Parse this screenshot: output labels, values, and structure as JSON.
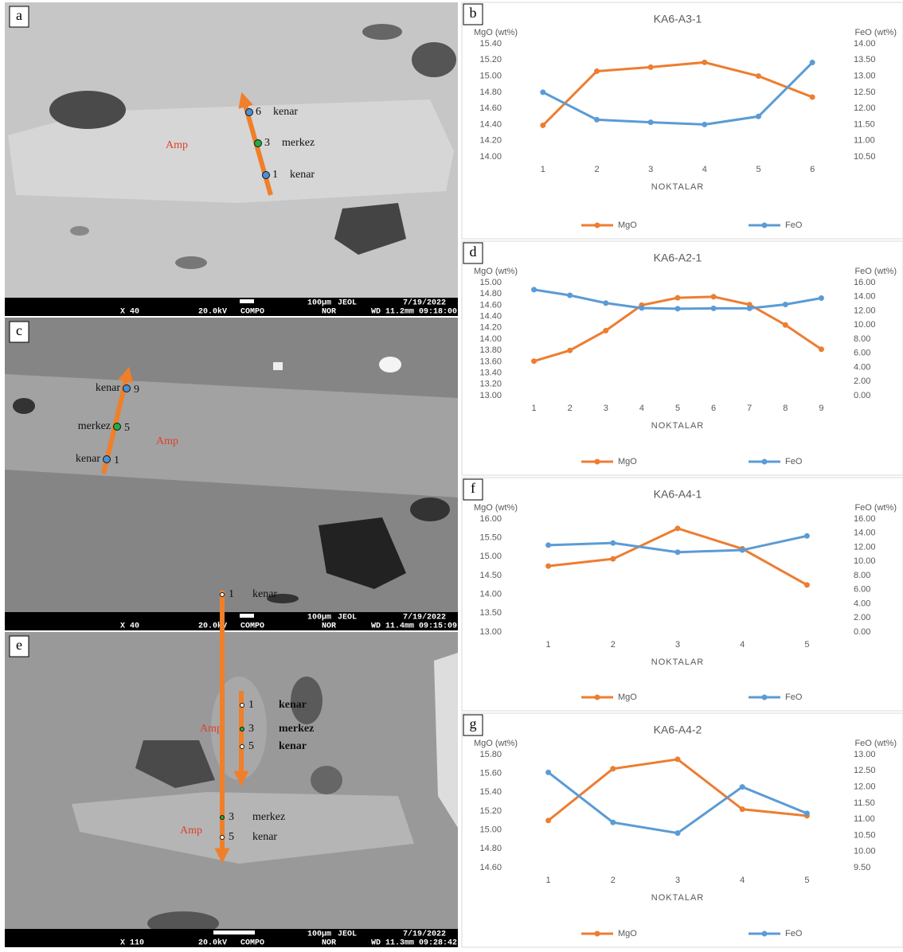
{
  "images": [
    {
      "label": "a",
      "minerals": [
        "Amp"
      ],
      "traverses": [
        [
          {
            "number": "6",
            "name": "kenar"
          },
          {
            "number": "3",
            "name": "merkez"
          },
          {
            "number": "1",
            "name": "kenar"
          }
        ]
      ],
      "info": {
        "magnification": "X 40",
        "voltage": "20.0kV",
        "mode": "COMPO",
        "nor": "NOR",
        "wd": "WD 11.2mm",
        "time": "09:18:00",
        "scale": "100µm",
        "brand": "JEOL",
        "date": "7/19/2022"
      }
    },
    {
      "label": "c",
      "minerals": [
        "Amp"
      ],
      "traverses": [
        [
          {
            "number": "9",
            "name": "kenar"
          },
          {
            "number": "5",
            "name": "merkez"
          },
          {
            "number": "1",
            "name": "kenar"
          }
        ]
      ],
      "info": {
        "magnification": "X 40",
        "voltage": "20.0kV",
        "mode": "COMPO",
        "nor": "NOR",
        "wd": "WD 11.4mm",
        "time": "09:15:09",
        "scale": "100µm",
        "brand": "JEOL",
        "date": "7/19/2022"
      }
    },
    {
      "label": "e",
      "minerals": [
        "Amp",
        "Amp"
      ],
      "traverses": [
        [
          {
            "number": "1",
            "name": "kenar"
          },
          {
            "number": "3",
            "name": "merkez"
          },
          {
            "number": "5",
            "name": "kenar"
          }
        ],
        [
          {
            "number": "1",
            "name": "kenar"
          },
          {
            "number": "3",
            "name": "merkez"
          },
          {
            "number": "5",
            "name": "kenar"
          }
        ]
      ],
      "info": {
        "magnification": "X 110",
        "voltage": "20.0kV",
        "mode": "COMPO",
        "nor": "NOR",
        "wd": "WD 11.3mm",
        "time": "09:28:42",
        "scale": "100µm",
        "brand": "JEOL",
        "date": "7/19/2022"
      }
    }
  ],
  "chart_data": [
    {
      "type": "line",
      "label": "b",
      "title": "KA6-A3-1",
      "y_label": "MgO (wt%)",
      "y2_label": "FeO (wt%)",
      "x_label": "NOKTALAR",
      "legend": "bottom",
      "grid": false,
      "categories": [
        "1",
        "2",
        "3",
        "4",
        "5",
        "6"
      ],
      "highlight_index": 2,
      "highlight_color": "#00a050",
      "series": [
        {
          "name": "MgO",
          "color": "#ed7d31",
          "values": [
            14.39,
            15.06,
            15.11,
            15.17,
            15.0,
            14.74
          ]
        },
        {
          "name": "FeO",
          "color": "#5b9bd5",
          "axis": "y2",
          "values": [
            12.5,
            11.65,
            11.57,
            11.5,
            11.75,
            13.42
          ]
        }
      ],
      "ylim": [
        14.0,
        15.4
      ],
      "yticks": [
        {
          "value": 14.0,
          "label": "14.00"
        },
        {
          "value": 14.2,
          "label": "14.20"
        },
        {
          "value": 14.4,
          "label": "14.40"
        },
        {
          "value": 14.6,
          "label": "14.60"
        },
        {
          "value": 14.8,
          "label": "14.80"
        },
        {
          "value": 15.0,
          "label": "15.00"
        },
        {
          "value": 15.2,
          "label": "15.20"
        },
        {
          "value": 15.4,
          "label": "15.40"
        }
      ],
      "y2lim": [
        10.5,
        14.0
      ],
      "y2ticks": [
        {
          "value": 10.5,
          "label": "10.50"
        },
        {
          "value": 11.0,
          "label": "11.00"
        },
        {
          "value": 11.5,
          "label": "11.50"
        },
        {
          "value": 12.0,
          "label": "12.00"
        },
        {
          "value": 12.5,
          "label": "12.50"
        },
        {
          "value": 13.0,
          "label": "13.00"
        },
        {
          "value": 13.5,
          "label": "13.50"
        },
        {
          "value": 14.0,
          "label": "14.00"
        }
      ]
    },
    {
      "type": "line",
      "label": "d",
      "title": "KA6-A2-1",
      "y_label": "MgO (wt%)",
      "y2_label": "FeO (wt%)",
      "x_label": "NOKTALAR",
      "legend": "bottom",
      "grid": false,
      "categories": [
        "1",
        "2",
        "3",
        "4",
        "5",
        "6",
        "7",
        "8",
        "9"
      ],
      "highlight_index": 4,
      "highlight_color": "#00a050",
      "series": [
        {
          "name": "MgO",
          "color": "#ed7d31",
          "values": [
            13.61,
            13.8,
            14.15,
            14.6,
            14.73,
            14.75,
            14.61,
            14.25,
            13.82
          ]
        },
        {
          "name": "FeO",
          "color": "#5b9bd5",
          "axis": "y2",
          "values": [
            15.0,
            14.2,
            13.1,
            12.4,
            12.3,
            12.35,
            12.35,
            12.9,
            13.8
          ]
        }
      ],
      "ylim": [
        13.0,
        15.0
      ],
      "yticks": [
        {
          "value": 13.0,
          "label": "13.00"
        },
        {
          "value": 13.2,
          "label": "13.20"
        },
        {
          "value": 13.4,
          "label": "13.40"
        },
        {
          "value": 13.6,
          "label": "13.60"
        },
        {
          "value": 13.8,
          "label": "13.80"
        },
        {
          "value": 14.0,
          "label": "14.00"
        },
        {
          "value": 14.2,
          "label": "14.20"
        },
        {
          "value": 14.4,
          "label": "14.40"
        },
        {
          "value": 14.6,
          "label": "14.60"
        },
        {
          "value": 14.8,
          "label": "14.80"
        },
        {
          "value": 15.0,
          "label": "15.00"
        }
      ],
      "y2lim": [
        0,
        16
      ],
      "y2ticks": [
        {
          "value": 0,
          "label": "0.00"
        },
        {
          "value": 2,
          "label": "2.00"
        },
        {
          "value": 4,
          "label": "4.00"
        },
        {
          "value": 6,
          "label": "6.00"
        },
        {
          "value": 8,
          "label": "8.00"
        },
        {
          "value": 10,
          "label": "10.00"
        },
        {
          "value": 12,
          "label": "12.00"
        },
        {
          "value": 14,
          "label": "14.00"
        },
        {
          "value": 16,
          "label": "16.00"
        }
      ]
    },
    {
      "type": "line",
      "label": "f",
      "title": "KA6-A4-1",
      "y_label": "MgO (wt%)",
      "y2_label": "FeO (wt%)",
      "x_label": "NOKTALAR",
      "legend": "bottom",
      "grid": false,
      "categories": [
        "1",
        "2",
        "3",
        "4",
        "5"
      ],
      "highlight_index": 2,
      "highlight_color": "#00a050",
      "series": [
        {
          "name": "MgO",
          "color": "#ed7d31",
          "values": [
            14.75,
            14.94,
            15.75,
            15.21,
            14.25
          ]
        },
        {
          "name": "FeO",
          "color": "#5b9bd5",
          "axis": "y2",
          "values": [
            12.3,
            12.6,
            11.3,
            11.6,
            13.6
          ]
        }
      ],
      "ylim": [
        13.0,
        16.0
      ],
      "yticks": [
        {
          "value": 13.0,
          "label": "13.00"
        },
        {
          "value": 13.5,
          "label": "13.50"
        },
        {
          "value": 14.0,
          "label": "14.00"
        },
        {
          "value": 14.5,
          "label": "14.50"
        },
        {
          "value": 15.0,
          "label": "15.00"
        },
        {
          "value": 15.5,
          "label": "15.50"
        },
        {
          "value": 16.0,
          "label": "16.00"
        }
      ],
      "y2lim": [
        0,
        16
      ],
      "y2ticks": [
        {
          "value": 0,
          "label": "0.00"
        },
        {
          "value": 2,
          "label": "2.00"
        },
        {
          "value": 4,
          "label": "4.00"
        },
        {
          "value": 6,
          "label": "6.00"
        },
        {
          "value": 8,
          "label": "8.00"
        },
        {
          "value": 10,
          "label": "10.00"
        },
        {
          "value": 12,
          "label": "12.00"
        },
        {
          "value": 14,
          "label": "14.00"
        },
        {
          "value": 16,
          "label": "16.00"
        }
      ]
    },
    {
      "type": "line",
      "label": "g",
      "title": "KA6-A4-2",
      "y_label": "MgO (wt%)",
      "y2_label": "FeO (wt%)",
      "x_label": "NOKTALAR",
      "legend": "bottom",
      "grid": false,
      "categories": [
        "1",
        "2",
        "3",
        "4",
        "5"
      ],
      "highlight_index": 2,
      "highlight_color": "#00a050",
      "series": [
        {
          "name": "MgO",
          "color": "#ed7d31",
          "values": [
            15.1,
            15.65,
            15.75,
            15.22,
            15.15
          ]
        },
        {
          "name": "FeO",
          "color": "#5b9bd5",
          "axis": "y2",
          "values": [
            12.45,
            10.9,
            10.57,
            12.0,
            11.18
          ]
        }
      ],
      "ylim": [
        14.6,
        15.8
      ],
      "yticks": [
        {
          "value": 14.6,
          "label": "14.60"
        },
        {
          "value": 14.8,
          "label": "14.80"
        },
        {
          "value": 15.0,
          "label": "15.00"
        },
        {
          "value": 15.2,
          "label": "15.20"
        },
        {
          "value": 15.4,
          "label": "15.40"
        },
        {
          "value": 15.6,
          "label": "15.60"
        },
        {
          "value": 15.8,
          "label": "15.80"
        }
      ],
      "y2lim": [
        9.5,
        13.0
      ],
      "y2ticks": [
        {
          "value": 9.5,
          "label": "9.50"
        },
        {
          "value": 10.0,
          "label": "10.00"
        },
        {
          "value": 10.5,
          "label": "10.50"
        },
        {
          "value": 11.0,
          "label": "11.00"
        },
        {
          "value": 11.5,
          "label": "11.50"
        },
        {
          "value": 12.0,
          "label": "12.00"
        },
        {
          "value": 12.5,
          "label": "12.50"
        },
        {
          "value": 13.0,
          "label": "13.00"
        }
      ]
    }
  ]
}
